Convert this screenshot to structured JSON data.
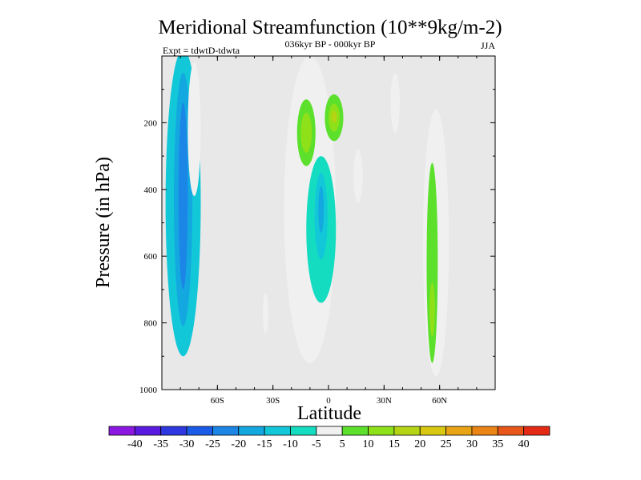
{
  "chart_data": {
    "type": "heatmap",
    "title": "Meridional Streamfunction (10**9kg/m-2)",
    "subtitle": "036kyr BP - 000kyr BP",
    "left_label": "Expt = tdwtD-tdwta",
    "right_label": "JJA",
    "xlabel": "Latitude",
    "ylabel": "Pressure (in hPa)",
    "xlim": [
      -90,
      90
    ],
    "ylim": [
      1000,
      0
    ],
    "x_ticks": [
      {
        "value": -60,
        "label": "60S"
      },
      {
        "value": -30,
        "label": "30S"
      },
      {
        "value": 0,
        "label": "0"
      },
      {
        "value": 30,
        "label": "30N"
      },
      {
        "value": 60,
        "label": "60N"
      }
    ],
    "y_ticks": [
      {
        "value": 200,
        "label": "200"
      },
      {
        "value": 400,
        "label": "400"
      },
      {
        "value": 600,
        "label": "600"
      },
      {
        "value": 800,
        "label": "800"
      },
      {
        "value": 1000,
        "label": "1000"
      }
    ],
    "background_color": "#e8e8e8",
    "colorbar": {
      "levels": [
        "-40",
        "-35",
        "-30",
        "-25",
        "-20",
        "-15",
        "-10",
        "-5",
        "5",
        "10",
        "15",
        "20",
        "25",
        "30",
        "35",
        "40"
      ],
      "colors": [
        "#8a18e0",
        "#5a1ae0",
        "#2d38e0",
        "#1a5ce8",
        "#1b86e6",
        "#14a8e0",
        "#12c8d8",
        "#14dcc0",
        "#f0f0f0",
        "#5ce02c",
        "#8ee018",
        "#b4d414",
        "#d8c810",
        "#e8a414",
        "#ea8414",
        "#e8561a",
        "#e42a14"
      ]
    },
    "features": [
      {
        "name": "southern-negative-cell",
        "level": -10,
        "lat": -78.5,
        "p": 440,
        "dlat": 9.5,
        "dp": 460
      },
      {
        "name": "southern-negative-core",
        "level": -15,
        "lat": -78.5,
        "p": 430,
        "dlat": 5,
        "dp": 380
      },
      {
        "name": "southern-negative-inner",
        "level": -20,
        "lat": -78.5,
        "p": 420,
        "dlat": 2.5,
        "dp": 280
      },
      {
        "name": "southern-positive-edge",
        "level": 5,
        "lat": -72.5,
        "p": 220,
        "dlat": 3.5,
        "dp": 200
      },
      {
        "name": "tropical-positive-column",
        "level": 5,
        "lat": -10,
        "p": 460,
        "dlat": 14,
        "dp": 460
      },
      {
        "name": "tropical-positive-left-core",
        "level": 10,
        "lat": -12,
        "p": 230,
        "dlat": 5,
        "dp": 100
      },
      {
        "name": "tropical-positive-left-inner",
        "level": 15,
        "lat": -12,
        "p": 230,
        "dlat": 3,
        "dp": 60
      },
      {
        "name": "tropical-positive-right-core",
        "level": 10,
        "lat": 3,
        "p": 185,
        "dlat": 5,
        "dp": 70
      },
      {
        "name": "tropical-positive-right-inner",
        "level": 15,
        "lat": 3,
        "p": 185,
        "dlat": 3,
        "dp": 42
      },
      {
        "name": "tropical-positive-right-max",
        "level": 20,
        "lat": 3,
        "p": 182,
        "dlat": 1.5,
        "dp": 18
      },
      {
        "name": "equatorial-negative-cell",
        "level": -5,
        "lat": -4,
        "p": 520,
        "dlat": 8,
        "dp": 220
      },
      {
        "name": "equatorial-negative-core",
        "level": -10,
        "lat": -4,
        "p": 480,
        "dlat": 3.5,
        "dp": 130
      },
      {
        "name": "equatorial-negative-inner",
        "level": -15,
        "lat": -4,
        "p": 460,
        "dlat": 1.5,
        "dp": 70
      },
      {
        "name": "northern-positive-column",
        "level": 5,
        "lat": 58,
        "p": 560,
        "dlat": 7,
        "dp": 400
      },
      {
        "name": "northern-positive-core",
        "level": 10,
        "lat": 56,
        "p": 620,
        "dlat": 3,
        "dp": 300
      },
      {
        "name": "northern-positive-inner",
        "level": 15,
        "lat": 56,
        "p": 760,
        "dlat": 1.5,
        "dp": 80
      },
      {
        "name": "subtropical-positive-blob",
        "level": 5,
        "lat": 36,
        "p": 140,
        "dlat": 2.5,
        "dp": 90
      },
      {
        "name": "midlatitude-positive-blob",
        "level": 5,
        "lat": 16,
        "p": 360,
        "dlat": 2.5,
        "dp": 80
      },
      {
        "name": "lower-positive-blob",
        "level": 5,
        "lat": -34,
        "p": 770,
        "dlat": 1.5,
        "dp": 60
      }
    ]
  }
}
